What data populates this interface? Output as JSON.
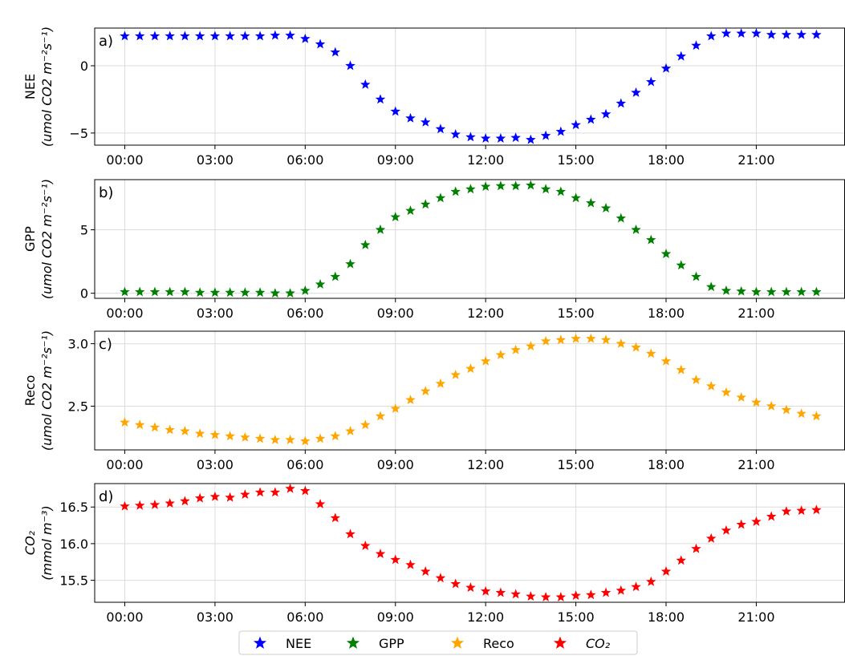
{
  "chart_data": [
    {
      "type": "scatter",
      "panel_label": "a)",
      "ylabel": [
        "NEE",
        "(umol CO2 m⁻²s⁻¹)"
      ],
      "ylim": [
        -5.9,
        2.8
      ],
      "yticks": [
        -5,
        0
      ],
      "xlim": [
        -1.0,
        23.95
      ],
      "xticks": [
        0,
        3,
        6,
        9,
        12,
        15,
        18,
        21
      ],
      "xtick_labels": [
        "00:00",
        "03:00",
        "06:00",
        "09:00",
        "12:00",
        "15:00",
        "18:00",
        "21:00"
      ],
      "grid": true,
      "series": [
        {
          "name": "NEE",
          "color": "#0000ff",
          "x": [
            0,
            0.5,
            1,
            1.5,
            2,
            2.5,
            3,
            3.5,
            4,
            4.5,
            5,
            5.5,
            6,
            6.5,
            7,
            7.5,
            8,
            8.5,
            9,
            9.5,
            10,
            10.5,
            11,
            11.5,
            12,
            12.5,
            13,
            13.5,
            14,
            14.5,
            15,
            15.5,
            16,
            16.5,
            17,
            17.5,
            18,
            18.5,
            19,
            19.5,
            20,
            20.5,
            21,
            21.5,
            22,
            22.5,
            23
          ],
          "y": [
            2.2,
            2.2,
            2.2,
            2.2,
            2.2,
            2.2,
            2.2,
            2.2,
            2.2,
            2.2,
            2.25,
            2.25,
            2.0,
            1.6,
            1.0,
            0.0,
            -1.4,
            -2.5,
            -3.4,
            -3.9,
            -4.2,
            -4.7,
            -5.1,
            -5.3,
            -5.4,
            -5.4,
            -5.35,
            -5.5,
            -5.2,
            -4.9,
            -4.4,
            -4.0,
            -3.6,
            -2.8,
            -2.0,
            -1.2,
            -0.2,
            0.7,
            1.5,
            2.2,
            2.4,
            2.4,
            2.4,
            2.3,
            2.3,
            2.3,
            2.3
          ]
        }
      ]
    },
    {
      "type": "scatter",
      "panel_label": "b)",
      "ylabel": [
        "GPP",
        "(umol CO2 m⁻²s⁻¹)"
      ],
      "ylim": [
        -0.4,
        8.95
      ],
      "yticks": [
        0,
        5
      ],
      "xlim": [
        -1.0,
        23.95
      ],
      "xticks": [
        0,
        3,
        6,
        9,
        12,
        15,
        18,
        21
      ],
      "xtick_labels": [
        "00:00",
        "03:00",
        "06:00",
        "09:00",
        "12:00",
        "15:00",
        "18:00",
        "21:00"
      ],
      "grid": true,
      "series": [
        {
          "name": "GPP",
          "color": "#008000",
          "x": [
            0,
            0.5,
            1,
            1.5,
            2,
            2.5,
            3,
            3.5,
            4,
            4.5,
            5,
            5.5,
            6,
            6.5,
            7,
            7.5,
            8,
            8.5,
            9,
            9.5,
            10,
            10.5,
            11,
            11.5,
            12,
            12.5,
            13,
            13.5,
            14,
            14.5,
            15,
            15.5,
            16,
            16.5,
            17,
            17.5,
            18,
            18.5,
            19,
            19.5,
            20,
            20.5,
            21,
            21.5,
            22,
            22.5,
            23
          ],
          "y": [
            0.1,
            0.1,
            0.1,
            0.1,
            0.1,
            0.05,
            0.05,
            0.05,
            0.05,
            0.05,
            0.0,
            0.0,
            0.2,
            0.7,
            1.3,
            2.3,
            3.8,
            5.0,
            6.0,
            6.5,
            7.0,
            7.5,
            8.0,
            8.2,
            8.4,
            8.45,
            8.45,
            8.5,
            8.2,
            8.0,
            7.5,
            7.1,
            6.7,
            5.9,
            5.0,
            4.2,
            3.1,
            2.2,
            1.3,
            0.5,
            0.2,
            0.15,
            0.1,
            0.1,
            0.1,
            0.1,
            0.1
          ]
        }
      ]
    },
    {
      "type": "scatter",
      "panel_label": "c)",
      "ylabel": [
        "Reco",
        "(umol CO2 m⁻²s⁻¹)"
      ],
      "ylim": [
        2.15,
        3.1
      ],
      "yticks": [
        2.5,
        3.0
      ],
      "xlim": [
        -1.0,
        23.95
      ],
      "xticks": [
        0,
        3,
        6,
        9,
        12,
        15,
        18,
        21
      ],
      "xtick_labels": [
        "00:00",
        "03:00",
        "06:00",
        "09:00",
        "12:00",
        "15:00",
        "18:00",
        "21:00"
      ],
      "grid": true,
      "series": [
        {
          "name": "Reco",
          "color": "#ffa500",
          "x": [
            0,
            0.5,
            1,
            1.5,
            2,
            2.5,
            3,
            3.5,
            4,
            4.5,
            5,
            5.5,
            6,
            6.5,
            7,
            7.5,
            8,
            8.5,
            9,
            9.5,
            10,
            10.5,
            11,
            11.5,
            12,
            12.5,
            13,
            13.5,
            14,
            14.5,
            15,
            15.5,
            16,
            16.5,
            17,
            17.5,
            18,
            18.5,
            19,
            19.5,
            20,
            20.5,
            21,
            21.5,
            22,
            22.5,
            23
          ],
          "y": [
            2.37,
            2.35,
            2.33,
            2.31,
            2.3,
            2.28,
            2.27,
            2.26,
            2.25,
            2.24,
            2.23,
            2.23,
            2.22,
            2.24,
            2.26,
            2.3,
            2.35,
            2.42,
            2.48,
            2.55,
            2.62,
            2.68,
            2.75,
            2.8,
            2.86,
            2.91,
            2.95,
            2.98,
            3.02,
            3.03,
            3.04,
            3.04,
            3.03,
            3.0,
            2.97,
            2.92,
            2.86,
            2.79,
            2.71,
            2.66,
            2.61,
            2.57,
            2.53,
            2.5,
            2.47,
            2.44,
            2.42
          ]
        }
      ]
    },
    {
      "type": "scatter",
      "panel_label": "d)",
      "ylabel": [
        "CO₂",
        "(mmol m⁻³)"
      ],
      "ylim": [
        15.2,
        16.82
      ],
      "yticks": [
        15.5,
        16.0,
        16.5
      ],
      "xlim": [
        -1.0,
        23.95
      ],
      "xticks": [
        0,
        3,
        6,
        9,
        12,
        15,
        18,
        21
      ],
      "xtick_labels": [
        "00:00",
        "03:00",
        "06:00",
        "09:00",
        "12:00",
        "15:00",
        "18:00",
        "21:00"
      ],
      "grid": true,
      "series": [
        {
          "name": "CO₂",
          "color": "#ff0000",
          "x": [
            0,
            0.5,
            1,
            1.5,
            2,
            2.5,
            3,
            3.5,
            4,
            4.5,
            5,
            5.5,
            6,
            6.5,
            7,
            7.5,
            8,
            8.5,
            9,
            9.5,
            10,
            10.5,
            11,
            11.5,
            12,
            12.5,
            13,
            13.5,
            14,
            14.5,
            15,
            15.5,
            16,
            16.5,
            17,
            17.5,
            18,
            18.5,
            19,
            19.5,
            20,
            20.5,
            21,
            21.5,
            22,
            22.5,
            23
          ],
          "y": [
            16.51,
            16.52,
            16.53,
            16.55,
            16.58,
            16.62,
            16.64,
            16.63,
            16.67,
            16.7,
            16.7,
            16.75,
            16.72,
            16.54,
            16.35,
            16.13,
            15.97,
            15.86,
            15.78,
            15.71,
            15.62,
            15.53,
            15.45,
            15.4,
            15.35,
            15.33,
            15.31,
            15.28,
            15.27,
            15.27,
            15.29,
            15.3,
            15.33,
            15.36,
            15.41,
            15.48,
            15.62,
            15.77,
            15.93,
            16.07,
            16.18,
            16.26,
            16.3,
            16.37,
            16.44,
            16.45,
            16.46
          ]
        }
      ]
    }
  ],
  "legend": {
    "placement": "bottom-center",
    "entries": [
      {
        "label": "NEE",
        "color": "#0000ff"
      },
      {
        "label": "GPP",
        "color": "#008000"
      },
      {
        "label": "Reco",
        "color": "#ffa500"
      },
      {
        "label": "CO₂",
        "color": "#ff0000"
      }
    ]
  }
}
